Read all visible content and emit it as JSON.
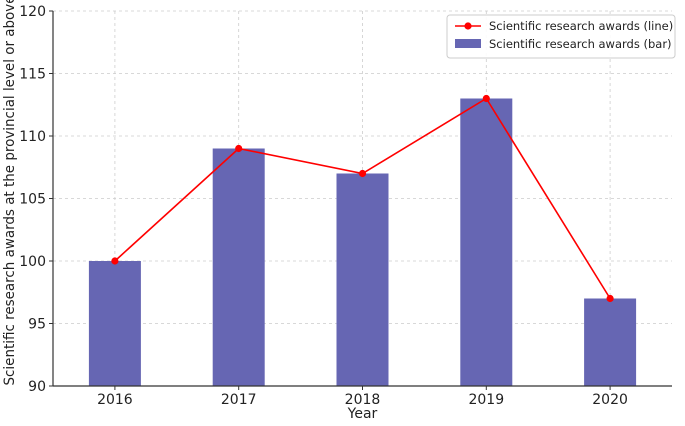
{
  "chart_data": {
    "type": "bar",
    "xlabel": "Year",
    "ylabel": "Scientific research awards at the provincial level or above",
    "categories": [
      "2016",
      "2017",
      "2018",
      "2019",
      "2020"
    ],
    "ylim": [
      90,
      120
    ],
    "yticks": [
      90,
      95,
      100,
      105,
      110,
      115,
      120
    ],
    "grid": true,
    "legend_position": "top-right",
    "series": [
      {
        "name": "Scientific research awards (line)",
        "type": "line",
        "color": "#ff0000",
        "marker": "circle",
        "values": [
          100,
          109,
          107,
          113,
          97
        ]
      },
      {
        "name": "Scientific research awards (bar)",
        "type": "bar",
        "color": "#6666b3",
        "values": [
          100,
          109,
          107,
          113,
          97
        ]
      }
    ]
  }
}
